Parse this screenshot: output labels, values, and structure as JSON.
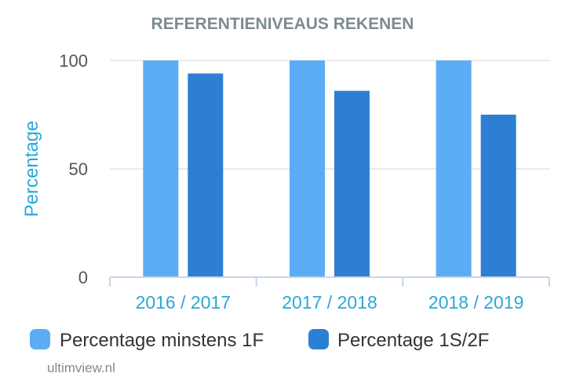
{
  "chart_data": {
    "type": "bar",
    "title": "REFERENTIENIVEAUS REKENEN",
    "ylabel": "Percentage",
    "xlabel": "",
    "ylim": [
      0,
      100
    ],
    "yticks": [
      0,
      50,
      100
    ],
    "categories": [
      "2016 / 2017",
      "2017 / 2018",
      "2018 / 2019"
    ],
    "series": [
      {
        "name": "Percentage minstens 1F",
        "values": [
          100,
          100,
          100
        ],
        "color": "#5aacf5"
      },
      {
        "name": "Percentage 1S/2F",
        "values": [
          94,
          86,
          75
        ],
        "color": "#2d7fd3"
      }
    ],
    "grid": true,
    "legend": "bottom"
  },
  "footer": {
    "credit": "ultimview.nl"
  }
}
